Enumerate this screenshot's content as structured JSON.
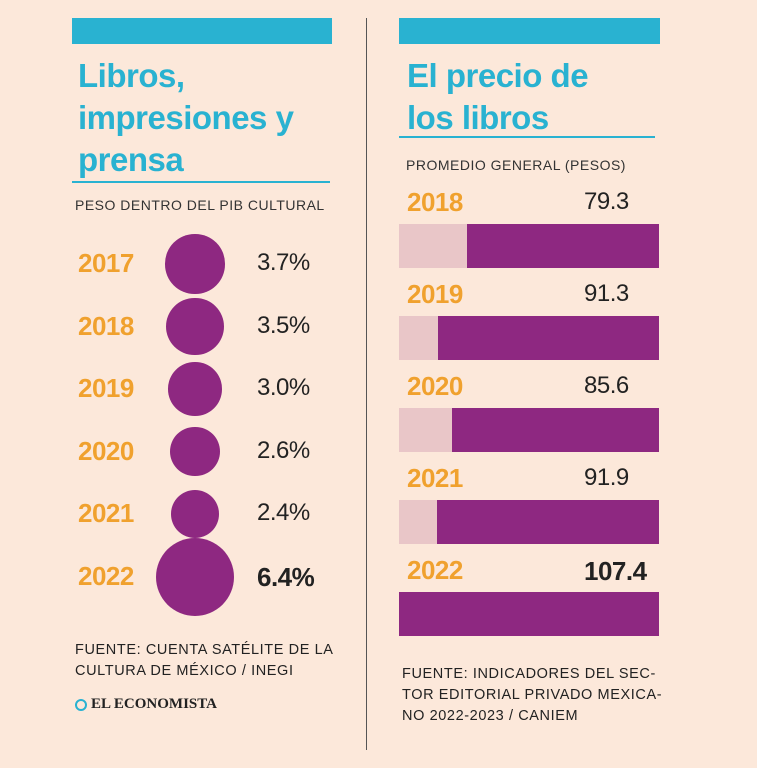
{
  "left": {
    "title_lines": [
      "Libros,",
      "impresiones y",
      "prensa"
    ],
    "subtitle": "PESO DENTRO DEL PIB CULTURAL",
    "source_lines": [
      "FUENTE: CUENTA SATÉLITE DE LA",
      "CULTURA DE MÉXICO / INEGI"
    ],
    "logo": "EL ECONOMISTA"
  },
  "right": {
    "title_lines": [
      "El precio de",
      "los libros"
    ],
    "subtitle": "PROMEDIO GENERAL (PESOS)",
    "source_lines": [
      "FUENTE: INDICADORES DEL SEC-",
      "TOR EDITORIAL PRIVADO MEXICA-",
      "NO 2022-2023 / CANIEM"
    ]
  },
  "chart_data": [
    {
      "type": "bubble",
      "categories": [
        "2017",
        "2018",
        "2019",
        "2020",
        "2021",
        "2022"
      ],
      "values": [
        3.7,
        3.5,
        3.0,
        2.6,
        2.4,
        6.4
      ],
      "value_labels": [
        "3.7%",
        "3.5%",
        "3.0%",
        "2.6%",
        "2.4%",
        "6.4%"
      ],
      "highlight_index": 5,
      "unit": "%",
      "color": "#8e2881"
    },
    {
      "type": "bar",
      "orientation": "horizontal",
      "categories": [
        "2018",
        "2019",
        "2020",
        "2021",
        "2022"
      ],
      "values": [
        79.3,
        91.3,
        85.6,
        91.9,
        107.4
      ],
      "value_labels": [
        "79.3",
        "91.3",
        "85.6",
        "91.9",
        "107.4"
      ],
      "highlight_index": 4,
      "xlim": [
        0,
        107.4
      ],
      "color": "#8e2881",
      "background_color": "#e9c6c8"
    }
  ],
  "colors": {
    "accent": "#29b2d1",
    "year": "#f0a12e",
    "background": "#fce8da"
  }
}
